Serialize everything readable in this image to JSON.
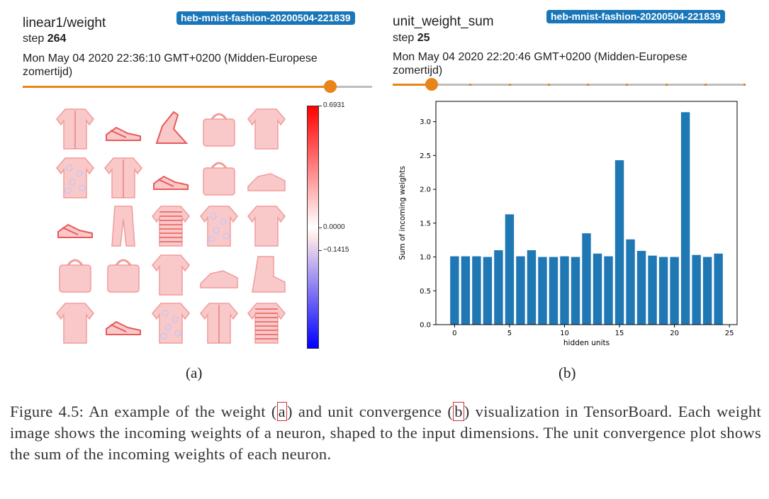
{
  "panel_a": {
    "title": "linear1/weight",
    "badge": "heb-mnist-fashion-20200504-221839",
    "step_label": "step",
    "step_value": "264",
    "timestamp": "Mon May 04 2020 22:36:10 GMT+0200 (Midden-Europese zomertijd)",
    "slider_fraction": 0.88,
    "colorbar": {
      "max_label": "0.6931",
      "zero_label": "0.0000",
      "neg_label": "−0.1415",
      "max": 0.6931,
      "min": -0.1415,
      "colormap": [
        "#0000ff",
        "#ffffff",
        "#ff0000"
      ]
    },
    "thumbnails": [
      "jacket",
      "sandal",
      "heel",
      "bag",
      "shirt",
      "pattern-shirt",
      "jacket",
      "sneaker-sandal",
      "bag",
      "sneaker",
      "sandal",
      "trouser",
      "striped-sweater",
      "pattern-shirt",
      "tshirt",
      "pattern-bag",
      "bag",
      "sweater",
      "sneaker",
      "boot",
      "sweater",
      "sandal",
      "pattern-shirt",
      "jacket",
      "striped-sweater"
    ],
    "sublabel": "(a)"
  },
  "panel_b": {
    "title": "unit_weight_sum",
    "badge": "heb-mnist-fashion-20200504-221839",
    "step_label": "step",
    "step_value": "25",
    "timestamp": "Mon May 04 2020 22:20:46 GMT+0200 (Midden-Europese zomertijd)",
    "slider_fraction": 0.11,
    "sublabel": "(b)"
  },
  "chart_data": {
    "type": "bar",
    "title": "",
    "xlabel": "hidden units",
    "ylabel": "Sum of incoming weights",
    "x": [
      0,
      1,
      2,
      3,
      4,
      5,
      6,
      7,
      8,
      9,
      10,
      11,
      12,
      13,
      14,
      15,
      16,
      17,
      18,
      19,
      20,
      21,
      22,
      23,
      24
    ],
    "values": [
      1.01,
      1.01,
      1.01,
      1.0,
      1.1,
      1.63,
      1.01,
      1.1,
      1.0,
      1.0,
      1.01,
      1.0,
      1.35,
      1.05,
      1.01,
      2.43,
      1.26,
      1.09,
      1.02,
      1.0,
      1.0,
      3.14,
      1.03,
      1.0,
      1.05
    ],
    "xlim": [
      -1.7,
      25.7
    ],
    "ylim": [
      0,
      3.3
    ],
    "xticks": [
      0,
      5,
      10,
      15,
      20,
      25
    ],
    "yticks": [
      0.0,
      0.5,
      1.0,
      1.5,
      2.0,
      2.5,
      3.0
    ],
    "bar_color": "#1f77b4",
    "grid": false
  },
  "caption": {
    "part1": "Figure 4.5:  An example of the weight (",
    "ref_a": "a",
    "part2": ") and unit convergence (",
    "ref_b": "b",
    "part3": ") visualization in TensorBoard. Each weight image shows the incoming weights of a neuron, shaped to the input dimensions. The unit convergence plot shows the sum of the incoming weights of each neuron."
  }
}
